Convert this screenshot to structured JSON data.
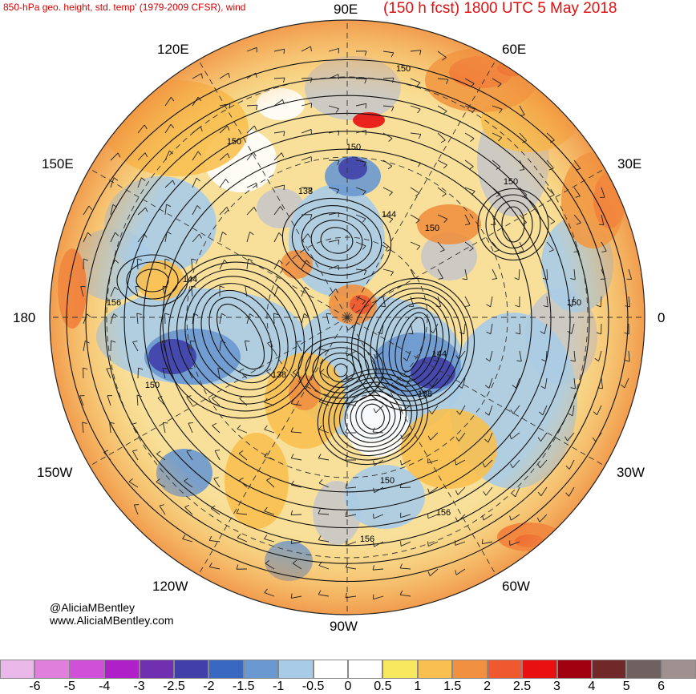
{
  "header": {
    "title_left": "850-hPa geo. height, std. temp' (1979-2009 CFSR), wind",
    "title_right": "(150 h fcst) 1800 UTC 5 May 2018"
  },
  "longitude_labels": {
    "lon_90e": "90E",
    "lon_60e": "60E",
    "lon_30e": "30E",
    "lon_0": "0",
    "lon_30w": "30W",
    "lon_60w": "60W",
    "lon_90w": "90W",
    "lon_120w": "120W",
    "lon_150w": "150W",
    "lon_180": "180",
    "lon_150e": "150E",
    "lon_120e": "120E"
  },
  "contour_labels": [
    "150",
    "150",
    "150",
    "150",
    "138",
    "144",
    "150",
    "144",
    "156",
    "150",
    "150",
    "144",
    "138",
    "138",
    "150",
    "156",
    "156"
  ],
  "credits": {
    "handle": "@AliciaMBentley",
    "website": "www.AliciaMBentley.com"
  },
  "colorbar": {
    "ticks": [
      "-6",
      "-5",
      "-4",
      "-3",
      "-2.5",
      "-2",
      "-1.5",
      "-1",
      "-0.5",
      "0",
      "0.5",
      "1",
      "1.5",
      "2",
      "2.5",
      "3",
      "4",
      "5",
      "6"
    ],
    "colors": [
      "#eab8e8",
      "#e080dc",
      "#d050d8",
      "#b020c8",
      "#7030b0",
      "#4040a8",
      "#3868c0",
      "#6a98d0",
      "#a8cce8",
      "#ffffff",
      "#ffffff",
      "#f8e860",
      "#f8c050",
      "#f09040",
      "#f05830",
      "#e81010",
      "#a00010",
      "#702828",
      "#706060",
      "#a09090"
    ]
  },
  "colors": {
    "title": "#d40000",
    "land_neutral": "#c8c8c8",
    "warm": "#f05830",
    "cold": "#4040a8"
  }
}
